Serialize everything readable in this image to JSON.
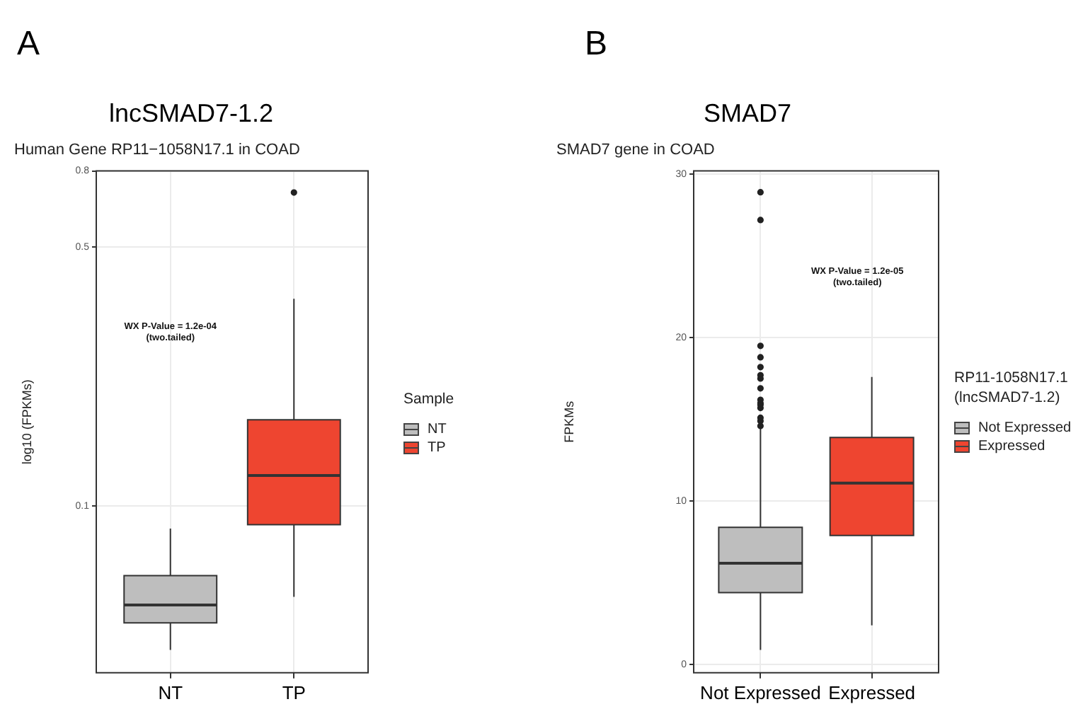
{
  "chart_data": [
    {
      "type": "box",
      "title": "lncSMAD7-1.2",
      "subtitle": "Human Gene RP11−1058N17.1 in COAD",
      "ylabel": "log10 (FPKMs)",
      "legend_title": "Sample",
      "log": true,
      "grid": true,
      "legend": "right",
      "categories": [
        "NT",
        "TP"
      ],
      "ylim": [
        0.0356,
        0.8
      ],
      "yticks": [
        0.1,
        0.5,
        0.8
      ],
      "annotations": [
        "A",
        "WX P-Value = 1.2e-04\n(two.tailed)"
      ],
      "series": [
        {
          "name": "NT",
          "color": "#bebebe",
          "boxes": [
            {
              "low": 0.041,
              "q1": 0.0485,
              "median": 0.0542,
              "q3": 0.065,
              "high": 0.0871
            },
            null
          ]
        },
        {
          "name": "TP",
          "color": "#ee4530",
          "boxes": [
            null,
            {
              "low": 0.057,
              "q1": 0.0892,
              "median": 0.121,
              "q3": 0.171,
              "high": 0.362,
              "outliers": [
                0.7
              ]
            }
          ]
        }
      ]
    },
    {
      "type": "box",
      "title": "SMAD7",
      "subtitle": "SMAD7 gene in COAD",
      "ylabel": "FPKMs",
      "legend_title": "RP11-1058N17.1\n(lncSMAD7-1.2)",
      "grid": true,
      "legend": "right",
      "categories": [
        "Not Expressed",
        "Expressed"
      ],
      "ylim": [
        -0.5,
        30.2
      ],
      "yticks": [
        0,
        10,
        20,
        30
      ],
      "annotations": [
        "B",
        "WX P-Value = 1.2e-05\n(two.tailed)"
      ],
      "series": [
        {
          "name": "Not Expressed",
          "color": "#bebebe",
          "boxes": [
            {
              "low": 0.9,
              "q1": 4.4,
              "median": 6.2,
              "q3": 8.4,
              "high": 14.5,
              "outliers": [
                14.6,
                14.9,
                15.1,
                15.7,
                15.9,
                16.0,
                16.2,
                16.9,
                17.5,
                17.7,
                18.2,
                18.8,
                19.5,
                27.2,
                28.9
              ]
            },
            null
          ]
        },
        {
          "name": "Expressed",
          "color": "#ee4530",
          "boxes": [
            null,
            {
              "low": 2.4,
              "q1": 7.9,
              "median": 11.1,
              "q3": 13.9,
              "high": 17.6
            }
          ]
        }
      ]
    }
  ]
}
